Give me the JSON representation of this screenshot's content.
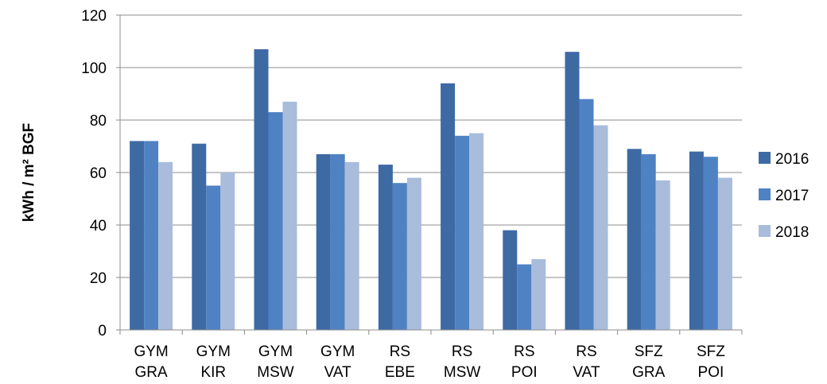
{
  "chart_data": {
    "type": "bar",
    "title": "",
    "xlabel": "",
    "ylabel": "kWh / m² BGF",
    "ylim": [
      0,
      120
    ],
    "yticks": [
      0,
      20,
      40,
      60,
      80,
      100,
      120
    ],
    "grid": true,
    "legend_position": "right",
    "categories": [
      [
        "GYM",
        "GRA"
      ],
      [
        "GYM",
        "KIR"
      ],
      [
        "GYM",
        "MSW"
      ],
      [
        "GYM",
        "VAT"
      ],
      [
        "RS",
        "EBE"
      ],
      [
        "RS",
        "MSW"
      ],
      [
        "RS",
        "POI"
      ],
      [
        "RS",
        "VAT"
      ],
      [
        "SFZ",
        "GRA"
      ],
      [
        "SFZ",
        "POI"
      ]
    ],
    "series": [
      {
        "name": "2016",
        "color": "#3e6aa4",
        "values": [
          72,
          71,
          107,
          67,
          63,
          94,
          38,
          106,
          69,
          68
        ]
      },
      {
        "name": "2017",
        "color": "#4f82c3",
        "values": [
          72,
          55,
          83,
          67,
          56,
          74,
          25,
          88,
          67,
          66
        ]
      },
      {
        "name": "2018",
        "color": "#a9bcdc",
        "values": [
          64,
          60,
          87,
          64,
          58,
          75,
          27,
          78,
          57,
          58
        ]
      }
    ]
  }
}
